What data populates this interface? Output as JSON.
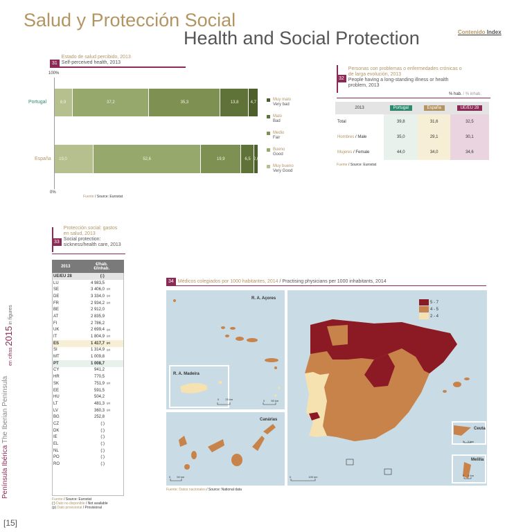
{
  "header": {
    "title_es": "Salud y Protección Social",
    "title_en": "Health and Social Protection",
    "contenido": "Contenido",
    "index": "Index"
  },
  "side": {
    "peninsula_es": "Península Ibérica",
    "peninsula_en": "The Iberian Peninsula",
    "en_cifras": "en cifras",
    "year": "2015",
    "in_figures": "in figures",
    "page": "[15]"
  },
  "colors": {
    "brand": "#8a2a55",
    "gold": "#b39563",
    "muy_malo": "#4d5f2a",
    "malo": "#5f7237",
    "medio": "#7e9152",
    "bueno": "#97a86c",
    "muy_bueno": "#b5c08e"
  },
  "fig31": {
    "num": "31",
    "title_es": "Estado de salud percibido, 2013",
    "title_en": "Self-perceived health, 2013",
    "top_label": "100%",
    "bottom_label": "0%",
    "fuente_es": "Fuente",
    "fuente_en": "/ Source:",
    "fuente_src": "Eurostat"
  },
  "chart_data": [
    {
      "type": "bar",
      "title": "Estado de salud percibido, 2013 / Self-perceived health, 2013",
      "categories": [
        "Portugal",
        "España"
      ],
      "stacked": true,
      "orientation": "horizontal",
      "series": [
        {
          "name": "Muy bueno / Very good",
          "values": [
            8.9,
            19.0
          ]
        },
        {
          "name": "Bueno / Good",
          "values": [
            37.2,
            52.6
          ]
        },
        {
          "name": "Medio / Fair",
          "values": [
            35.3,
            19.9
          ]
        },
        {
          "name": "Malo / Bad",
          "values": [
            13.8,
            6.5
          ]
        },
        {
          "name": "Muy malo / Very bad",
          "values": [
            4.7,
            2.0
          ]
        }
      ],
      "value_labels": [
        [
          "8,9",
          "37,2",
          "35,3",
          "13,8",
          "4,7"
        ],
        [
          "19,0",
          "52,6",
          "19,9",
          "6,5",
          "2,0"
        ]
      ],
      "legend": [
        {
          "es": "Muy malo",
          "en": "Very bad",
          "key": "muy_malo"
        },
        {
          "es": "Malo",
          "en": "Bad",
          "key": "malo"
        },
        {
          "es": "Medio",
          "en": "Fair",
          "key": "medio"
        },
        {
          "es": "Bueno",
          "en": "Good",
          "key": "bueno"
        },
        {
          "es": "Muy bueno",
          "en": "Very Good",
          "key": "muy_bueno"
        }
      ],
      "ylim": [
        0,
        100
      ],
      "legend_position": "right"
    },
    {
      "type": "table",
      "title": "Personas con problemas o enfermedades crónicas o de larga evolución, 2013",
      "columns": [
        "2013",
        "Portugal",
        "España",
        "UE/EU 28"
      ],
      "rows": [
        {
          "label": "Total",
          "values": [
            "39,8",
            "31,6",
            "32,5"
          ]
        },
        {
          "label_es": "Hombres",
          "label_en": "/ Male",
          "values": [
            "35,0",
            "29,1",
            "30,1"
          ]
        },
        {
          "label_es": "Mujeres",
          "label_en": "/ Female",
          "values": [
            "44,0",
            "34,0",
            "34,6"
          ]
        }
      ]
    },
    {
      "type": "table",
      "title": "Protección social: gastos en salud, 2013",
      "columns": [
        "2013",
        "€/hab. €/inhab."
      ],
      "rows": [
        [
          "UE/EU 28",
          "(:)",
          ""
        ],
        [
          "LU",
          "4 983,5",
          ""
        ],
        [
          "SE",
          "3 406,0",
          "(p)"
        ],
        [
          "DE",
          "3 334,0",
          "(p)"
        ],
        [
          "FR",
          "2 934,2",
          "(p)"
        ],
        [
          "BE",
          "2 912,0",
          ""
        ],
        [
          "AT",
          "2 835,9",
          ""
        ],
        [
          "FI",
          "2 786,2",
          ""
        ],
        [
          "UK",
          "2 699,4",
          "(p)"
        ],
        [
          "IT",
          "1 804,9",
          "(p)"
        ],
        [
          "ES",
          "1 417,7",
          "(p)"
        ],
        [
          "SI",
          "1 314,9",
          "(p)"
        ],
        [
          "MT",
          "1 009,8",
          ""
        ],
        [
          "PT",
          "1 008,7",
          ""
        ],
        [
          "CY",
          "941,2",
          ""
        ],
        [
          "HR",
          "770,5",
          ""
        ],
        [
          "SK",
          "751,9",
          "(p)"
        ],
        [
          "EE",
          "591,5",
          ""
        ],
        [
          "HU",
          "504,2",
          ""
        ],
        [
          "LT",
          "481,3",
          "(p)"
        ],
        [
          "LV",
          "360,3",
          "(p)"
        ],
        [
          "BG",
          "252,8",
          ""
        ],
        [
          "CZ",
          "(:)",
          ""
        ],
        [
          "DK",
          "(:)",
          ""
        ],
        [
          "IE",
          "(:)",
          ""
        ],
        [
          "EL",
          "(:)",
          ""
        ],
        [
          "NL",
          "(:)",
          ""
        ],
        [
          "PO",
          "(:)",
          ""
        ],
        [
          "RO",
          "(:)",
          ""
        ]
      ]
    }
  ],
  "fig32": {
    "num": "32",
    "title_es_1": "Personas con problemas o enfermedades crónicas o",
    "title_es_2": "de larga evolución, 2013",
    "title_en_1": "People having a long-standing illness or health",
    "title_en_2": "problem, 2013",
    "unit_es": "% hab.",
    "unit_en": "/ % inhab.",
    "col_year": "2013",
    "col_pt": "Portugal",
    "col_es": "España",
    "col_eu": "UE/EU 28",
    "fuente_es": "Fuente",
    "fuente_en": "/ Source:",
    "fuente_src": "Eurostat"
  },
  "fig33": {
    "num": "33",
    "title_es_1": "Protección social: gastos",
    "title_es_2": "en salud, 2013",
    "title_en_1": "Social protection:",
    "title_en_2": "sickness/health care, 2013",
    "col_year": "2013",
    "col_unit_1": "€/hab.",
    "col_unit_2": "€/inhab.",
    "fuente_es": "Fuente",
    "fuente_en": "/ Source:",
    "fuente_src": "Eurostat",
    "note1_a": "(:) ",
    "note1_b": "Dato no disponible",
    "note1_c": " / Not available",
    "note2_a": "(p) ",
    "note2_b": "Dato provisional",
    "note2_c": " / Provisional"
  },
  "fig34": {
    "num": "34",
    "title_es": "Médicos colegiados por 1000 habitantes, 2014",
    "title_en": "/ Practising physicians per 1000 inhabitants, 2014",
    "legend": [
      {
        "label": "5 - 7",
        "color": "#8b1a24"
      },
      {
        "label": "4 - 5",
        "color": "#c8834a"
      },
      {
        "label": "2 - 4",
        "color": "#f5e2b0"
      }
    ],
    "azores": "R. A. Açores",
    "madeira": "R. A. Madeira",
    "canarias": "Canárias",
    "ceuta": "Ceuta",
    "melilla": "Melilla",
    "scale_25": "25 km",
    "scale_50": "50 km",
    "scale_100": "100 km",
    "scale_5": "5 km",
    "zero": "0",
    "fuente_es": "Fuente: Datos nacionales",
    "fuente_en": "/ Source: National data"
  }
}
